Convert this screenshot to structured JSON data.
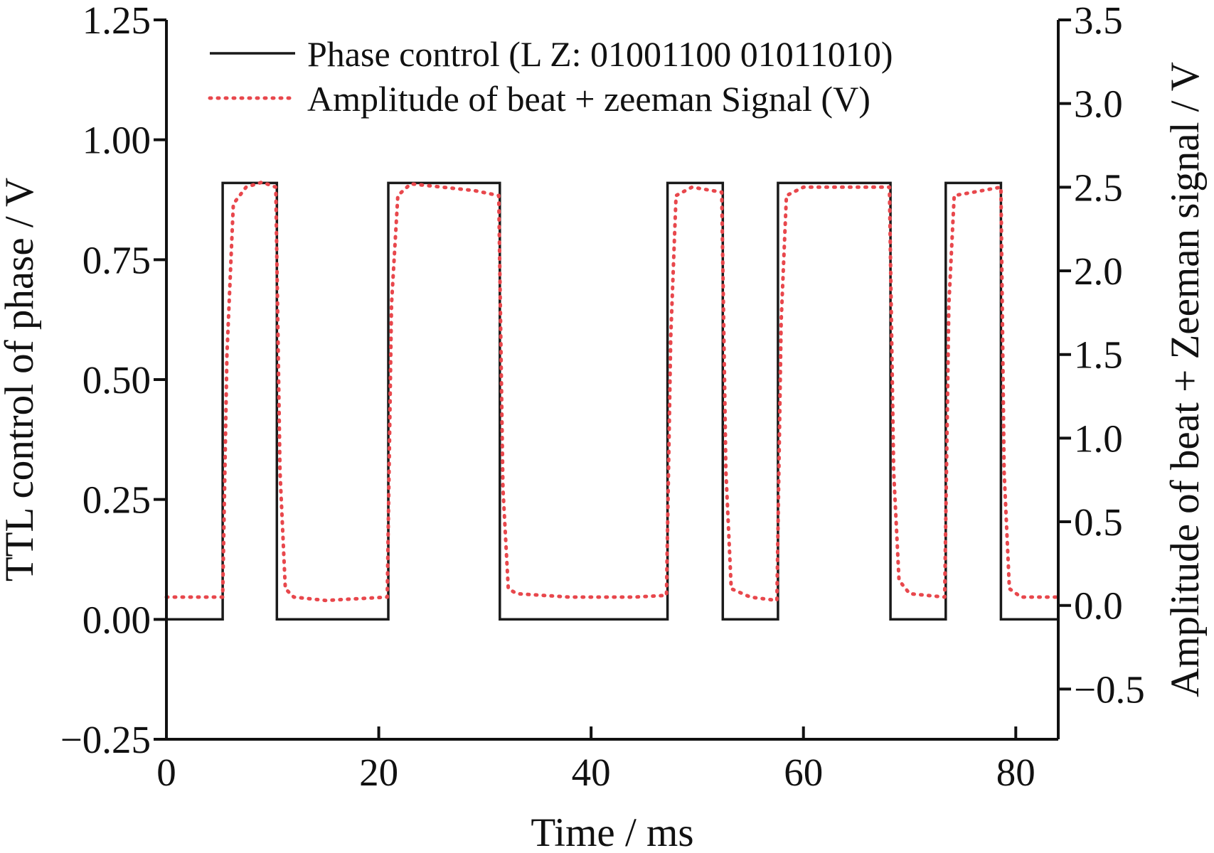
{
  "chart_data": {
    "type": "line",
    "xlabel": "Time / ms",
    "ylabel_left": "TTL control of phase / V",
    "ylabel_right": "Amplitude of beat + Zeeman signal / V",
    "xlim": [
      0,
      84
    ],
    "ylim_left": [
      -0.25,
      1.25
    ],
    "ylim_right": [
      -0.8,
      3.5
    ],
    "x_ticks": [
      "0",
      "20",
      "40",
      "60",
      "80"
    ],
    "x_tick_values": [
      0,
      20,
      40,
      60,
      80
    ],
    "y_left_ticks": [
      "−0.25",
      "0.00",
      "0.25",
      "0.50",
      "0.75",
      "1.00",
      "1.25"
    ],
    "y_left_tick_values": [
      -0.25,
      0.0,
      0.25,
      0.5,
      0.75,
      1.0,
      1.25
    ],
    "y_right_ticks": [
      "−0.5",
      "0.0",
      "0.5",
      "1.0",
      "1.5",
      "2.0",
      "2.5",
      "3.0",
      "3.5"
    ],
    "y_right_tick_values": [
      -0.5,
      0.0,
      0.5,
      1.0,
      1.5,
      2.0,
      2.5,
      3.0,
      3.5
    ],
    "grid": false,
    "legend_position": "top",
    "series": [
      {
        "name": "Phase control (L Z: 01001100 01011010)",
        "axis": "left",
        "style": "solid",
        "color": "#1a1a1a",
        "x": [
          0,
          5.3,
          5.3,
          10.4,
          10.4,
          20.9,
          20.9,
          31.4,
          31.4,
          47.2,
          47.2,
          52.4,
          52.4,
          57.6,
          57.6,
          68.2,
          68.2,
          73.4,
          73.4,
          78.6,
          78.6,
          84
        ],
        "y": [
          0,
          0,
          0.91,
          0.91,
          0,
          0,
          0.91,
          0.91,
          0,
          0,
          0.91,
          0.91,
          0,
          0,
          0.91,
          0.91,
          0,
          0,
          0.91,
          0.91,
          0,
          0
        ]
      },
      {
        "name": "Amplitude of beat + zeeman Signal (V)",
        "axis": "right",
        "style": "dotted",
        "color": "#e8474c",
        "x": [
          0,
          5.3,
          5.7,
          6.3,
          7.5,
          9.0,
          10.3,
          10.7,
          11.2,
          12,
          15,
          20.8,
          21.2,
          21.8,
          23,
          26,
          29,
          31.3,
          31.7,
          32.2,
          33,
          38,
          44,
          47.1,
          47.5,
          48,
          49.5,
          52.3,
          52.7,
          53.2,
          55,
          57.5,
          57.9,
          58.4,
          60,
          64,
          68.1,
          68.5,
          69.0,
          70,
          73.3,
          73.7,
          74.2,
          76,
          78.6,
          78.9,
          79.4,
          80.5,
          84
        ],
        "y": [
          0.05,
          0.05,
          1.5,
          2.4,
          2.5,
          2.53,
          2.5,
          0.8,
          0.1,
          0.05,
          0.03,
          0.05,
          1.8,
          2.45,
          2.52,
          2.5,
          2.48,
          2.45,
          0.7,
          0.1,
          0.07,
          0.05,
          0.05,
          0.06,
          1.6,
          2.45,
          2.5,
          2.47,
          0.8,
          0.1,
          0.05,
          0.03,
          1.7,
          2.45,
          2.5,
          2.5,
          2.5,
          0.8,
          0.15,
          0.07,
          0.05,
          1.8,
          2.45,
          2.47,
          2.5,
          0.8,
          0.1,
          0.05,
          0.05
        ]
      }
    ]
  }
}
